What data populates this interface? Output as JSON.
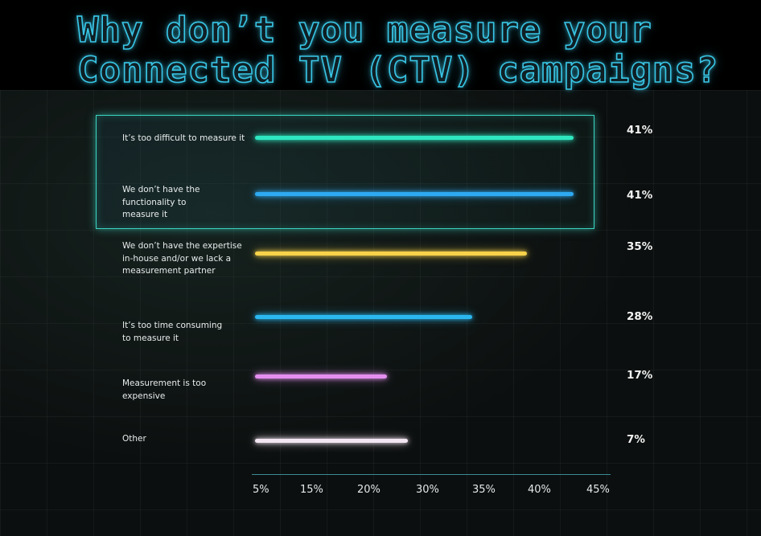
{
  "chart_data": {
    "type": "bar",
    "orientation": "horizontal",
    "title": "Why don’t you measure your Connected TV (CTV) campaigns?",
    "title_lines": [
      "Why don’t you measure your",
      "Connected TV (CTV) campaigns?"
    ],
    "categories": [
      "It’s too difficult to measure it",
      "We don’t have the\nfunctionality to\nmeasure it",
      "We don’t have the expertise\nin-house and/or we lack a\nmeasurement partner",
      "It’s too time consuming\n to measure it",
      "Measurement is too\nexpensive",
      "Other"
    ],
    "values": [
      41,
      41,
      35,
      28,
      17,
      7
    ],
    "value_labels": [
      "41%",
      "41%",
      "35%",
      "28%",
      "17%",
      "7%"
    ],
    "colors": [
      "#2ee6c0",
      "#2ea9f2",
      "#f7d24a",
      "#2bb8f0",
      "#e48ff0",
      "#f3e6f3"
    ],
    "x_ticks": [
      "5%",
      "15%",
      "20%",
      "30%",
      "35%",
      "40%",
      "45%"
    ],
    "highlighted": [
      0,
      1
    ],
    "grid": true,
    "xlabel": "",
    "ylabel": ""
  }
}
